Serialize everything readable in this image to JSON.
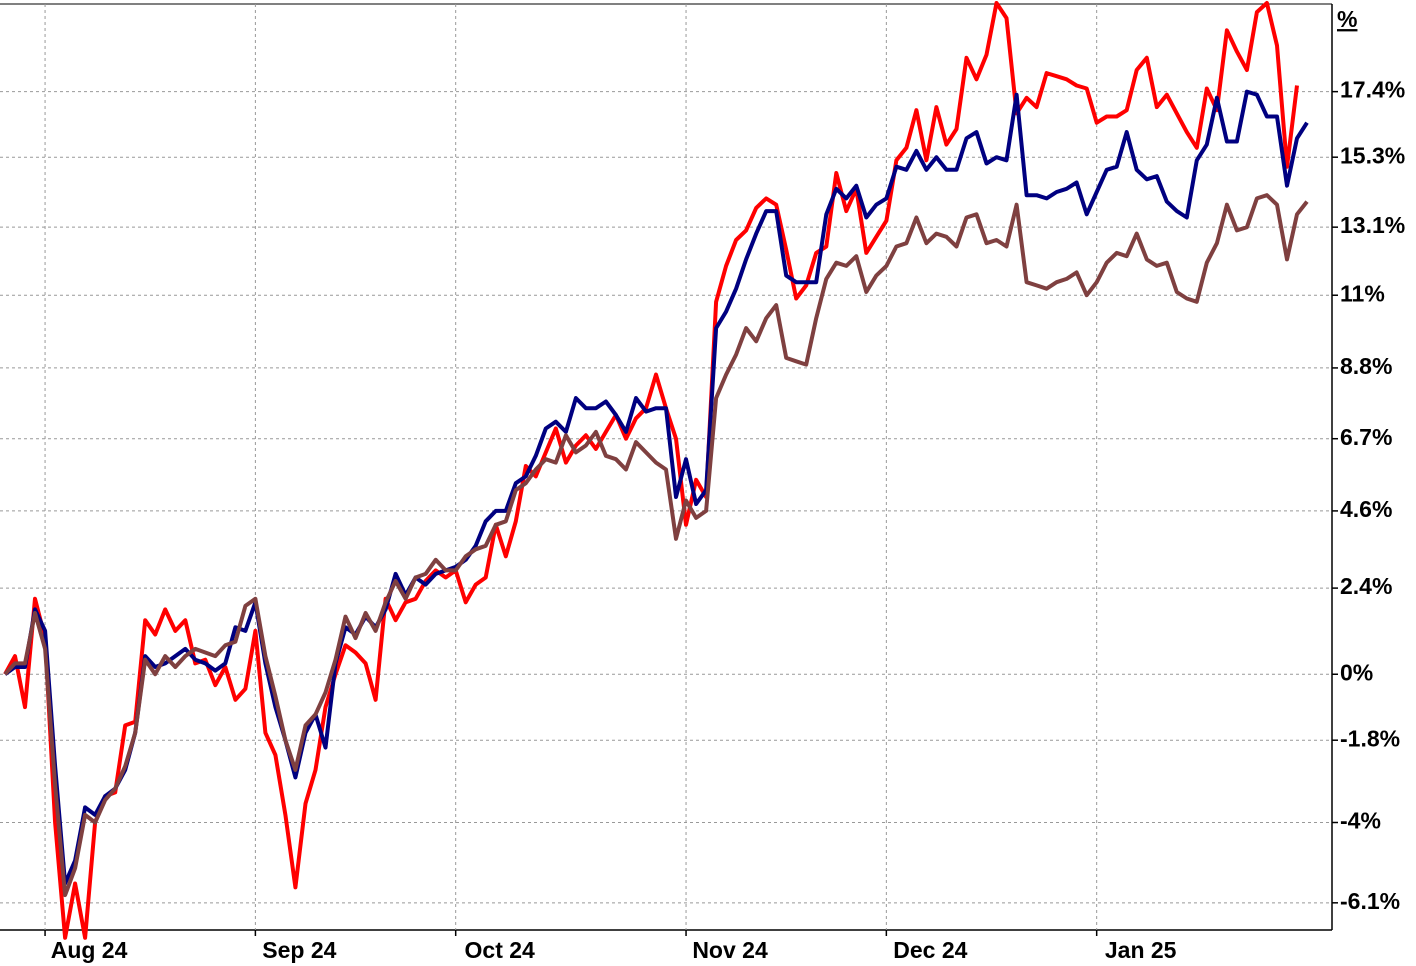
{
  "chart_data": {
    "type": "line",
    "ylabel": "%",
    "yscale": "log",
    "ylim": [
      -6.8,
      20.4
    ],
    "yticks": [
      {
        "value": -6.1,
        "label": "-6.1%"
      },
      {
        "value": -4,
        "label": "-4%"
      },
      {
        "value": -1.8,
        "label": "-1.8%"
      },
      {
        "value": 0,
        "label": "0%"
      },
      {
        "value": 2.4,
        "label": "2.4%"
      },
      {
        "value": 4.6,
        "label": "4.6%"
      },
      {
        "value": 6.7,
        "label": "6.7%"
      },
      {
        "value": 8.8,
        "label": "8.8%"
      },
      {
        "value": 11,
        "label": "11%"
      },
      {
        "value": 13.1,
        "label": "13.1%"
      },
      {
        "value": 15.3,
        "label": "15.3%"
      },
      {
        "value": 17.4,
        "label": "17.4%"
      }
    ],
    "grid": true,
    "categories": [
      null,
      null,
      null,
      null,
      "Aug 24",
      null,
      null,
      null,
      null,
      null,
      null,
      null,
      null,
      null,
      null,
      null,
      null,
      null,
      null,
      null,
      null,
      null,
      null,
      null,
      null,
      "Sep 24",
      null,
      null,
      null,
      null,
      null,
      null,
      null,
      null,
      null,
      null,
      null,
      null,
      null,
      null,
      null,
      null,
      null,
      null,
      null,
      "Oct 24",
      null,
      null,
      null,
      null,
      null,
      null,
      null,
      null,
      null,
      null,
      null,
      null,
      null,
      null,
      null,
      null,
      null,
      null,
      null,
      null,
      null,
      null,
      "Nov 24",
      null,
      null,
      null,
      null,
      null,
      null,
      null,
      null,
      null,
      null,
      null,
      null,
      null,
      null,
      null,
      null,
      null,
      null,
      null,
      "Dec 24",
      null,
      null,
      null,
      null,
      null,
      null,
      null,
      null,
      null,
      null,
      null,
      null,
      null,
      null,
      null,
      null,
      null,
      null,
      null,
      null,
      "Jan 25",
      null,
      null,
      null,
      null,
      null,
      null,
      null,
      null,
      null,
      null,
      null,
      null,
      null,
      null,
      null,
      null,
      null,
      null,
      null,
      null,
      null
    ],
    "series": [
      {
        "color": "#ff0000",
        "values": [
          0,
          0.5,
          -0.9,
          2.1,
          1.0,
          -4,
          -7,
          -5.6,
          -7,
          -4,
          -3.3,
          -3.2,
          -1.4,
          -1.3,
          1.5,
          1.1,
          1.8,
          1.2,
          1.5,
          0.3,
          0.4,
          -0.3,
          0.2,
          -0.7,
          -0.4,
          1.2,
          -1.6,
          -2.2,
          -3.8,
          -5.7,
          -3.5,
          -2.6,
          -0.9,
          0.0,
          0.8,
          0.6,
          0.3,
          -0.7,
          2.1,
          1.5,
          2.0,
          2.1,
          2.6,
          2.9,
          2.7,
          2.9,
          2.0,
          2.5,
          2.7,
          4.2,
          3.3,
          4.3,
          5.9,
          5.6,
          6.3,
          7.0,
          6.0,
          6.5,
          6.8,
          6.4,
          6.9,
          7.4,
          6.7,
          7.3,
          7.6,
          8.6,
          7.6,
          6.7,
          4.2,
          5.5,
          5.0,
          10.8,
          11.9,
          12.7,
          13.0,
          13.7,
          14.0,
          13.8,
          12.4,
          10.9,
          11.3,
          12.3,
          12.5,
          14.8,
          13.6,
          14.3,
          12.3,
          12.8,
          13.3,
          15.2,
          15.6,
          16.8,
          15.2,
          16.9,
          15.7,
          16.2,
          18.5,
          17.8,
          18.6,
          20.3,
          19.8,
          16.7,
          17.2,
          16.9,
          18.0,
          17.9,
          17.8,
          17.6,
          17.5,
          16.4,
          16.6,
          16.6,
          16.8,
          18.1,
          18.5,
          16.9,
          17.3,
          16.7,
          16.1,
          15.6,
          17.5,
          16.8,
          19.4,
          18.7,
          18.1,
          20.0,
          20.3,
          18.9,
          15.0,
          17.6,
          null
        ]
      },
      {
        "color": "#000080",
        "values": [
          0,
          0.2,
          0.2,
          1.8,
          1.2,
          -2.5,
          -5.6,
          -5.0,
          -3.6,
          -3.8,
          -3.3,
          -3.1,
          -2.6,
          -1.6,
          0.5,
          0.2,
          0.3,
          0.5,
          0.7,
          0.4,
          0.3,
          0.1,
          0.3,
          1.3,
          1.2,
          2.0,
          0.3,
          -0.9,
          -1.8,
          -2.8,
          -1.6,
          -1.1,
          -2.0,
          0.3,
          1.3,
          1.1,
          1.6,
          1.3,
          1.8,
          2.8,
          2.2,
          2.7,
          2.5,
          2.8,
          2.9,
          3.0,
          3.2,
          3.6,
          4.3,
          4.6,
          4.6,
          5.4,
          5.6,
          6.2,
          7.0,
          7.2,
          6.9,
          7.9,
          7.6,
          7.6,
          7.8,
          7.4,
          6.9,
          7.9,
          7.5,
          7.6,
          7.6,
          5.0,
          6.1,
          4.8,
          5.2,
          10.0,
          10.5,
          11.2,
          12.1,
          12.9,
          13.6,
          13.6,
          11.6,
          11.4,
          11.4,
          11.4,
          13.5,
          14.3,
          14.0,
          14.4,
          13.4,
          13.8,
          14.0,
          15.0,
          14.9,
          15.5,
          14.9,
          15.3,
          14.9,
          14.9,
          15.9,
          16.1,
          15.1,
          15.3,
          15.2,
          17.3,
          14.1,
          14.1,
          14.0,
          14.2,
          14.3,
          14.5,
          13.5,
          14.2,
          14.9,
          15.0,
          16.1,
          14.9,
          14.6,
          14.7,
          13.9,
          13.6,
          13.4,
          15.2,
          15.7,
          17.2,
          15.8,
          15.8,
          17.4,
          17.3,
          16.6,
          16.6,
          14.4,
          15.9,
          16.4
        ]
      },
      {
        "color": "#7f4040",
        "values": [
          0,
          0.3,
          0.3,
          1.7,
          0.7,
          -3,
          -5.9,
          -5.2,
          -3.8,
          -4.0,
          -3.4,
          -3.1,
          -2.5,
          -1.6,
          0.4,
          0.0,
          0.5,
          0.2,
          0.5,
          0.7,
          0.6,
          0.5,
          0.8,
          0.9,
          1.9,
          2.1,
          0.5,
          -0.6,
          -1.8,
          -2.6,
          -1.4,
          -1.1,
          -0.5,
          0.4,
          1.6,
          1.0,
          1.7,
          1.2,
          2.0,
          2.6,
          2.1,
          2.7,
          2.8,
          3.2,
          2.9,
          2.9,
          3.3,
          3.5,
          3.6,
          4.2,
          4.3,
          5.2,
          5.4,
          5.8,
          6.1,
          6.0,
          6.8,
          6.3,
          6.5,
          6.9,
          6.2,
          6.1,
          5.8,
          6.6,
          6.3,
          6.0,
          5.8,
          3.8,
          4.9,
          4.4,
          4.6,
          7.9,
          8.6,
          9.2,
          10.0,
          9.6,
          10.3,
          10.7,
          9.1,
          9.0,
          8.9,
          10.3,
          11.5,
          12.0,
          11.9,
          12.2,
          11.1,
          11.6,
          11.9,
          12.5,
          12.6,
          13.4,
          12.6,
          12.9,
          12.8,
          12.5,
          13.4,
          13.5,
          12.6,
          12.7,
          12.5,
          13.8,
          11.4,
          11.3,
          11.2,
          11.4,
          11.5,
          11.7,
          11.0,
          11.4,
          12.0,
          12.3,
          12.2,
          12.9,
          12.1,
          11.9,
          12.0,
          11.1,
          10.9,
          10.8,
          12.0,
          12.6,
          13.8,
          13.0,
          13.1,
          14.0,
          14.1,
          13.8,
          12.1,
          13.5,
          13.9
        ]
      }
    ]
  }
}
